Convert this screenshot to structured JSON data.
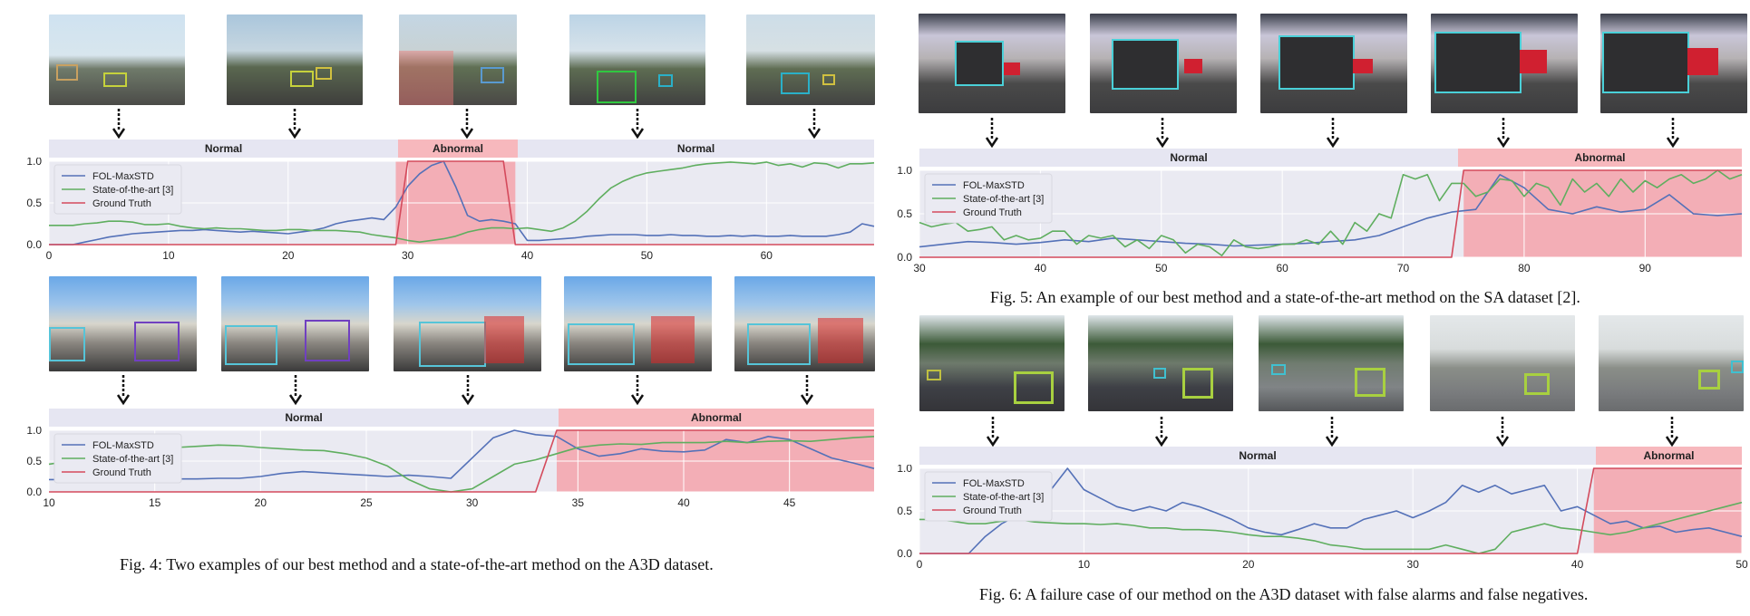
{
  "legend": {
    "series": [
      "FOL-MaxSTD",
      "State-of-the-art [3]",
      "Ground Truth"
    ],
    "colors": [
      "#5471b8",
      "#5fae5f",
      "#d44a5c"
    ]
  },
  "colors": {
    "band_normal": "#e6e6f2",
    "band_abnormal": "#f7b8bd",
    "plot_bg": "#eaeaf2",
    "abnormal_fill": "#f4a3ab",
    "grid": "#ffffff",
    "axis_text": "#222222"
  },
  "captions": {
    "fig4": "Fig. 4: Two examples of our best method and a state-of-the-art method on the A3D dataset.",
    "fig5": "Fig. 5: An example of our best method and a state-of-the-art method on the SA dataset [2].",
    "fig6": "Fig. 6: A failure case of our method on the A3D dataset with false alarms and false negatives."
  },
  "chart_data": [
    {
      "id": "fig4a",
      "type": "line",
      "xlim": [
        0,
        69
      ],
      "ylim": [
        0,
        1.0
      ],
      "xticks": [
        0,
        10,
        20,
        30,
        40,
        50,
        60
      ],
      "yticks": [
        0.0,
        0.5,
        1.0
      ],
      "segments": [
        {
          "label": "Normal",
          "from": 0,
          "to": 29
        },
        {
          "label": "Abnormal",
          "from": 29,
          "to": 39
        },
        {
          "label": "Normal",
          "from": 39,
          "to": 69
        }
      ],
      "abnormal_range": [
        29,
        39
      ],
      "series": [
        {
          "name": "FOL-MaxSTD",
          "x": [
            0,
            1,
            2,
            3,
            4,
            5,
            6,
            7,
            8,
            9,
            10,
            11,
            12,
            13,
            14,
            15,
            16,
            17,
            18,
            19,
            20,
            21,
            22,
            23,
            24,
            25,
            26,
            27,
            28,
            29,
            30,
            31,
            32,
            33,
            34,
            35,
            36,
            37,
            38,
            39,
            40,
            41,
            42,
            43,
            44,
            45,
            46,
            47,
            48,
            49,
            50,
            51,
            52,
            53,
            54,
            55,
            56,
            57,
            58,
            59,
            60,
            61,
            62,
            63,
            64,
            65,
            66,
            67,
            68,
            69
          ],
          "y": [
            0,
            0,
            0,
            0.03,
            0.06,
            0.09,
            0.11,
            0.13,
            0.14,
            0.15,
            0.16,
            0.17,
            0.17,
            0.18,
            0.17,
            0.16,
            0.15,
            0.16,
            0.15,
            0.14,
            0.13,
            0.15,
            0.17,
            0.2,
            0.25,
            0.28,
            0.3,
            0.32,
            0.3,
            0.45,
            0.7,
            0.85,
            0.95,
            1.0,
            0.7,
            0.35,
            0.28,
            0.3,
            0.28,
            0.25,
            0.05,
            0.05,
            0.06,
            0.07,
            0.08,
            0.1,
            0.11,
            0.12,
            0.12,
            0.12,
            0.11,
            0.11,
            0.12,
            0.11,
            0.11,
            0.1,
            0.1,
            0.11,
            0.1,
            0.11,
            0.1,
            0.1,
            0.11,
            0.1,
            0.1,
            0.1,
            0.12,
            0.15,
            0.25,
            0.22
          ]
        },
        {
          "name": "State-of-the-art [3]",
          "x": [
            0,
            1,
            2,
            3,
            4,
            5,
            6,
            7,
            8,
            9,
            10,
            11,
            12,
            13,
            14,
            15,
            16,
            17,
            18,
            19,
            20,
            21,
            22,
            23,
            24,
            25,
            26,
            27,
            28,
            29,
            30,
            31,
            32,
            33,
            34,
            35,
            36,
            37,
            38,
            39,
            40,
            41,
            42,
            43,
            44,
            45,
            46,
            47,
            48,
            49,
            50,
            51,
            52,
            53,
            54,
            55,
            56,
            57,
            58,
            59,
            60,
            61,
            62,
            63,
            64,
            65,
            66,
            67,
            68,
            69
          ],
          "y": [
            0.23,
            0.23,
            0.23,
            0.25,
            0.26,
            0.28,
            0.28,
            0.27,
            0.24,
            0.24,
            0.25,
            0.22,
            0.2,
            0.19,
            0.2,
            0.19,
            0.19,
            0.18,
            0.17,
            0.17,
            0.18,
            0.18,
            0.17,
            0.17,
            0.17,
            0.16,
            0.15,
            0.12,
            0.1,
            0.08,
            0.05,
            0.03,
            0.05,
            0.07,
            0.1,
            0.15,
            0.18,
            0.2,
            0.2,
            0.19,
            0.2,
            0.18,
            0.16,
            0.2,
            0.28,
            0.4,
            0.55,
            0.68,
            0.76,
            0.82,
            0.86,
            0.88,
            0.9,
            0.92,
            0.95,
            0.97,
            0.98,
            0.99,
            0.98,
            0.97,
            0.99,
            0.95,
            0.97,
            0.93,
            0.98,
            0.97,
            0.92,
            0.97,
            0.97,
            0.98
          ]
        },
        {
          "name": "Ground Truth",
          "x": [
            0,
            29,
            30,
            38,
            39,
            69
          ],
          "y": [
            0,
            0,
            1,
            1,
            0,
            0
          ]
        }
      ]
    },
    {
      "id": "fig4b",
      "type": "line",
      "xlim": [
        10,
        49
      ],
      "ylim": [
        0,
        1.0
      ],
      "xticks": [
        10,
        15,
        20,
        25,
        30,
        35,
        40,
        45
      ],
      "yticks": [
        0.0,
        0.5,
        1.0
      ],
      "segments": [
        {
          "label": "Normal",
          "from": 10,
          "to": 34
        },
        {
          "label": "Abnormal",
          "from": 34,
          "to": 49
        }
      ],
      "abnormal_range": [
        34,
        49
      ],
      "series": [
        {
          "name": "FOL-MaxSTD",
          "x": [
            10,
            11,
            12,
            13,
            14,
            15,
            16,
            17,
            18,
            19,
            20,
            21,
            22,
            23,
            24,
            25,
            26,
            27,
            28,
            29,
            30,
            31,
            32,
            33,
            34,
            35,
            36,
            37,
            38,
            39,
            40,
            41,
            42,
            43,
            44,
            45,
            46,
            47,
            48,
            49
          ],
          "y": [
            0.2,
            0.2,
            0.2,
            0.21,
            0.21,
            0.2,
            0.21,
            0.21,
            0.22,
            0.22,
            0.25,
            0.3,
            0.33,
            0.31,
            0.29,
            0.27,
            0.25,
            0.27,
            0.25,
            0.22,
            0.55,
            0.88,
            1.0,
            0.93,
            0.9,
            0.7,
            0.58,
            0.62,
            0.7,
            0.66,
            0.65,
            0.68,
            0.85,
            0.8,
            0.9,
            0.85,
            0.7,
            0.55,
            0.47,
            0.38
          ]
        },
        {
          "name": "State-of-the-art [3]",
          "x": [
            10,
            11,
            12,
            13,
            14,
            15,
            16,
            17,
            18,
            19,
            20,
            21,
            22,
            23,
            24,
            25,
            26,
            27,
            28,
            29,
            30,
            31,
            32,
            33,
            34,
            35,
            36,
            37,
            38,
            39,
            40,
            41,
            42,
            43,
            44,
            45,
            46,
            47,
            48,
            49
          ],
          "y": [
            0.45,
            0.5,
            0.5,
            0.5,
            0.5,
            0.52,
            0.72,
            0.74,
            0.76,
            0.75,
            0.72,
            0.7,
            0.68,
            0.67,
            0.62,
            0.55,
            0.42,
            0.2,
            0.05,
            0.0,
            0.05,
            0.25,
            0.45,
            0.52,
            0.62,
            0.72,
            0.76,
            0.78,
            0.77,
            0.8,
            0.8,
            0.8,
            0.82,
            0.8,
            0.82,
            0.83,
            0.82,
            0.85,
            0.88,
            0.9
          ]
        },
        {
          "name": "Ground Truth",
          "x": [
            10,
            33,
            34,
            49
          ],
          "y": [
            0,
            0,
            1,
            1
          ]
        }
      ]
    },
    {
      "id": "fig5",
      "type": "line",
      "xlim": [
        30,
        98
      ],
      "ylim": [
        0,
        1.0
      ],
      "xticks": [
        30,
        40,
        50,
        60,
        70,
        80,
        90
      ],
      "yticks": [
        0.0,
        0.5,
        1.0
      ],
      "segments": [
        {
          "label": "Normal",
          "from": 30,
          "to": 75
        },
        {
          "label": "Abnormal",
          "from": 75,
          "to": 98
        }
      ],
      "abnormal_range": [
        75,
        98
      ],
      "series": [
        {
          "name": "FOL-MaxSTD",
          "x": [
            30,
            32,
            34,
            36,
            38,
            40,
            42,
            44,
            46,
            48,
            50,
            52,
            54,
            56,
            58,
            60,
            62,
            64,
            66,
            68,
            70,
            72,
            74,
            76,
            78,
            80,
            82,
            84,
            86,
            88,
            90,
            92,
            94,
            96,
            98
          ],
          "y": [
            0.12,
            0.15,
            0.18,
            0.17,
            0.15,
            0.17,
            0.2,
            0.18,
            0.22,
            0.2,
            0.18,
            0.16,
            0.15,
            0.13,
            0.14,
            0.15,
            0.16,
            0.18,
            0.2,
            0.25,
            0.35,
            0.45,
            0.52,
            0.55,
            0.95,
            0.8,
            0.55,
            0.5,
            0.58,
            0.52,
            0.55,
            0.72,
            0.5,
            0.48,
            0.5
          ]
        },
        {
          "name": "State-of-the-art [3]",
          "x": [
            30,
            31,
            32,
            33,
            34,
            35,
            36,
            37,
            38,
            39,
            40,
            41,
            42,
            43,
            44,
            45,
            46,
            47,
            48,
            49,
            50,
            51,
            52,
            53,
            54,
            55,
            56,
            57,
            58,
            59,
            60,
            61,
            62,
            63,
            64,
            65,
            66,
            67,
            68,
            69,
            70,
            71,
            72,
            73,
            74,
            75,
            76,
            77,
            78,
            79,
            80,
            81,
            82,
            83,
            84,
            85,
            86,
            87,
            88,
            89,
            90,
            91,
            92,
            93,
            94,
            95,
            96,
            97,
            98
          ],
          "y": [
            0.4,
            0.35,
            0.38,
            0.4,
            0.3,
            0.32,
            0.35,
            0.2,
            0.25,
            0.2,
            0.22,
            0.3,
            0.3,
            0.15,
            0.25,
            0.22,
            0.25,
            0.12,
            0.2,
            0.1,
            0.25,
            0.2,
            0.05,
            0.15,
            0.12,
            0.02,
            0.2,
            0.12,
            0.1,
            0.12,
            0.15,
            0.15,
            0.2,
            0.15,
            0.3,
            0.15,
            0.4,
            0.3,
            0.5,
            0.45,
            0.95,
            0.9,
            0.95,
            0.65,
            0.85,
            0.85,
            0.7,
            0.75,
            0.9,
            0.88,
            0.7,
            0.85,
            0.8,
            0.6,
            0.9,
            0.75,
            0.85,
            0.7,
            0.9,
            0.75,
            0.88,
            0.8,
            0.9,
            0.95,
            0.85,
            0.9,
            1.0,
            0.9,
            0.95
          ]
        },
        {
          "name": "Ground Truth",
          "x": [
            30,
            74,
            75,
            98
          ],
          "y": [
            0,
            0,
            1,
            1
          ]
        }
      ]
    },
    {
      "id": "fig6",
      "type": "line",
      "xlim": [
        0,
        50
      ],
      "ylim": [
        0,
        1.0
      ],
      "xticks": [
        0,
        10,
        20,
        30,
        40,
        50
      ],
      "yticks": [
        0.0,
        0.5,
        1.0
      ],
      "segments": [
        {
          "label": "Normal",
          "from": 0,
          "to": 41
        },
        {
          "label": "Abnormal",
          "from": 41,
          "to": 50
        }
      ],
      "abnormal_range": [
        41,
        50
      ],
      "series": [
        {
          "name": "FOL-MaxSTD",
          "x": [
            0,
            1,
            2,
            3,
            4,
            5,
            6,
            7,
            8,
            9,
            10,
            11,
            12,
            13,
            14,
            15,
            16,
            17,
            18,
            19,
            20,
            21,
            22,
            23,
            24,
            25,
            26,
            27,
            28,
            29,
            30,
            31,
            32,
            33,
            34,
            35,
            36,
            37,
            38,
            39,
            40,
            41,
            42,
            43,
            44,
            45,
            46,
            47,
            48,
            49,
            50
          ],
          "y": [
            0,
            0,
            0,
            0,
            0.2,
            0.35,
            0.45,
            0.6,
            0.75,
            1.0,
            0.75,
            0.65,
            0.55,
            0.5,
            0.55,
            0.5,
            0.6,
            0.55,
            0.48,
            0.4,
            0.3,
            0.25,
            0.22,
            0.28,
            0.35,
            0.3,
            0.3,
            0.4,
            0.45,
            0.5,
            0.42,
            0.5,
            0.6,
            0.8,
            0.72,
            0.8,
            0.7,
            0.75,
            0.8,
            0.5,
            0.55,
            0.45,
            0.35,
            0.38,
            0.3,
            0.32,
            0.25,
            0.28,
            0.3,
            0.25,
            0.2
          ]
        },
        {
          "name": "State-of-the-art [3]",
          "x": [
            0,
            1,
            2,
            3,
            4,
            5,
            6,
            7,
            8,
            9,
            10,
            11,
            12,
            13,
            14,
            15,
            16,
            17,
            18,
            19,
            20,
            21,
            22,
            23,
            24,
            25,
            26,
            27,
            28,
            29,
            30,
            31,
            32,
            33,
            34,
            35,
            36,
            37,
            38,
            39,
            40,
            41,
            42,
            43,
            44,
            45,
            46,
            47,
            48,
            49,
            50
          ],
          "y": [
            0.4,
            0.4,
            0.38,
            0.35,
            0.35,
            0.38,
            0.4,
            0.37,
            0.36,
            0.35,
            0.35,
            0.34,
            0.35,
            0.33,
            0.3,
            0.3,
            0.28,
            0.28,
            0.27,
            0.25,
            0.22,
            0.2,
            0.2,
            0.18,
            0.15,
            0.1,
            0.08,
            0.05,
            0.05,
            0.05,
            0.05,
            0.05,
            0.1,
            0.05,
            0.0,
            0.05,
            0.25,
            0.3,
            0.35,
            0.3,
            0.28,
            0.25,
            0.22,
            0.25,
            0.3,
            0.35,
            0.4,
            0.45,
            0.5,
            0.55,
            0.6
          ]
        },
        {
          "name": "Ground Truth",
          "x": [
            0,
            40,
            41,
            50
          ],
          "y": [
            0,
            0,
            1,
            1
          ]
        }
      ]
    }
  ]
}
